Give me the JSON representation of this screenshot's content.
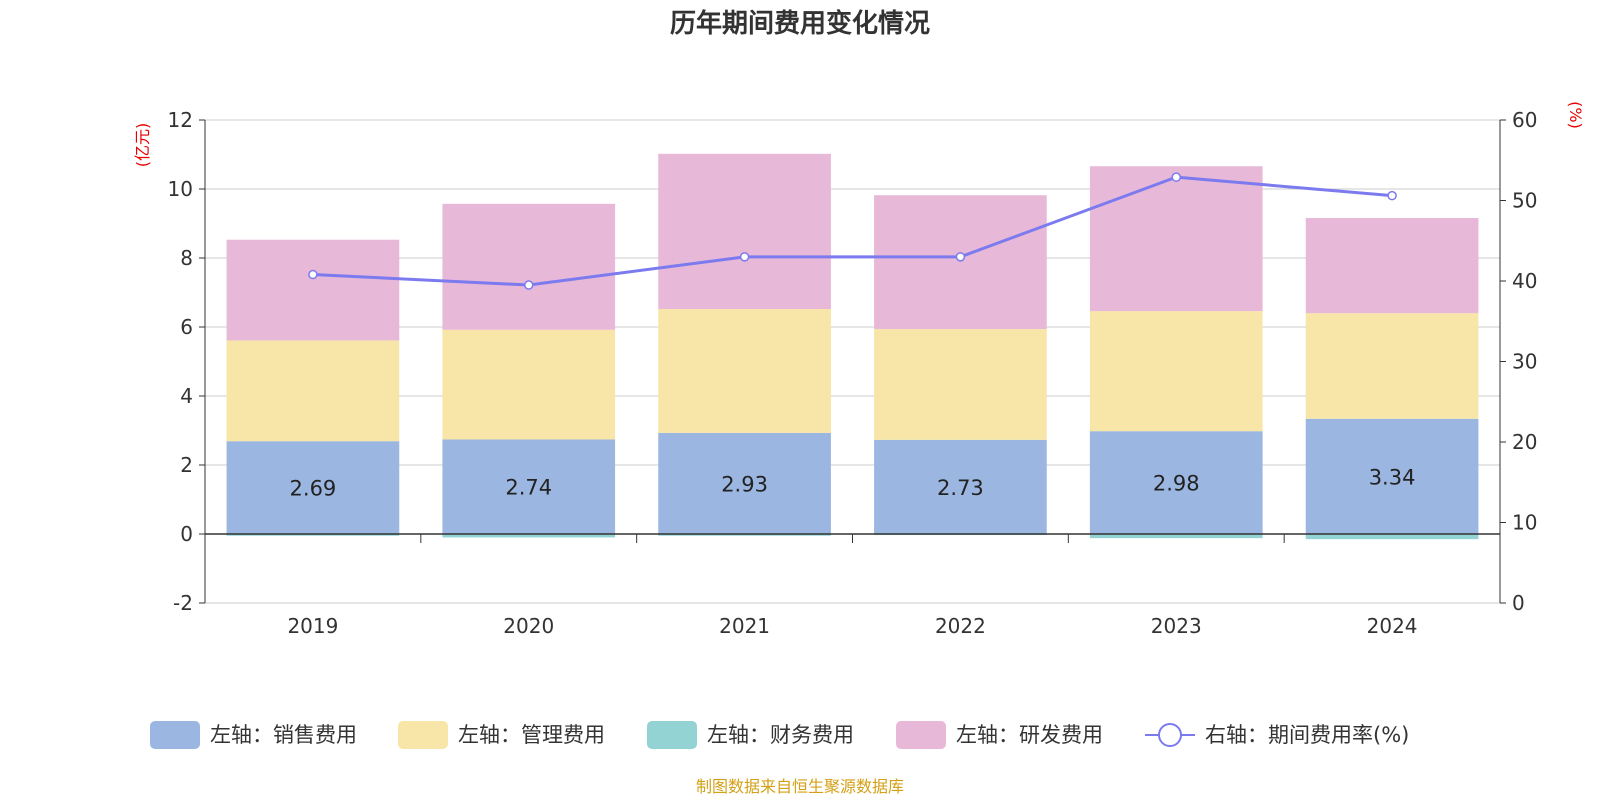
{
  "chart_data": {
    "type": "bar",
    "stacked": true,
    "title": "历年期间费用变化情况",
    "categories": [
      "2019",
      "2020",
      "2021",
      "2022",
      "2023",
      "2024"
    ],
    "left_axis": {
      "unit": "(亿元)",
      "min": -2,
      "max": 12,
      "ticks": [
        "-2",
        "0",
        "2",
        "4",
        "6",
        "8",
        "10",
        "12"
      ]
    },
    "right_axis": {
      "unit": "(%)",
      "min": 0,
      "max": 60,
      "ticks": [
        "0",
        "10",
        "20",
        "30",
        "40",
        "50",
        "60"
      ]
    },
    "series": [
      {
        "name": "左轴：销售费用",
        "type": "bar",
        "axis": "left",
        "color": "#9bb6e0",
        "values": [
          2.69,
          2.74,
          2.93,
          2.73,
          2.98,
          3.34
        ],
        "labels": [
          "2.69",
          "2.74",
          "2.93",
          "2.73",
          "2.98",
          "3.34"
        ]
      },
      {
        "name": "左轴：管理费用",
        "type": "bar",
        "axis": "left",
        "color": "#f7e6a7",
        "values": [
          2.92,
          3.18,
          3.59,
          3.21,
          3.48,
          3.06
        ]
      },
      {
        "name": "左轴：财务费用",
        "type": "bar",
        "axis": "left",
        "color": "#93d3d3",
        "values": [
          -0.05,
          -0.1,
          -0.05,
          -0.03,
          -0.12,
          -0.15
        ]
      },
      {
        "name": "左轴：研发费用",
        "type": "bar",
        "axis": "left",
        "color": "#e8b8d8",
        "values": [
          2.92,
          3.65,
          4.5,
          3.88,
          4.2,
          2.76
        ]
      },
      {
        "name": "右轴：期间费用率(%)",
        "type": "line",
        "axis": "right",
        "color": "#7b7bef",
        "values": [
          40.8,
          39.5,
          43.0,
          43.0,
          52.9,
          50.6
        ]
      }
    ],
    "axis_unit_color": "#e60000"
  },
  "source_text": "制图数据来自恒生聚源数据库",
  "source_color": "#d4a017"
}
